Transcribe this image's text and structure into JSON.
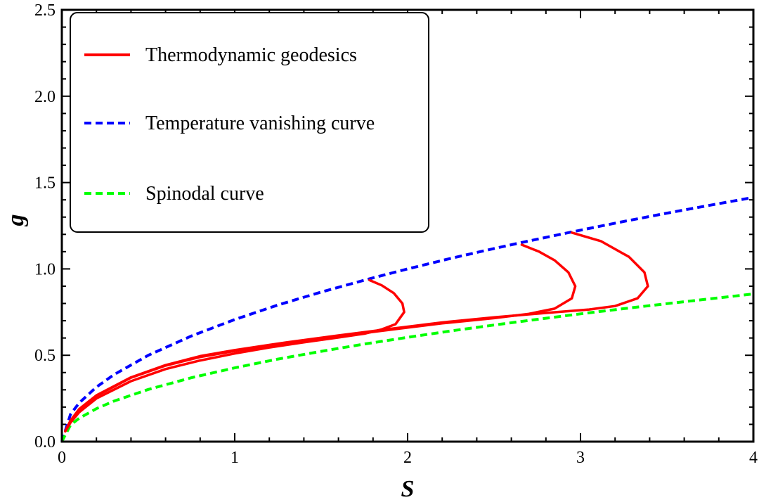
{
  "chart_data": {
    "type": "line",
    "xlabel": "S",
    "ylabel": "g",
    "xlim": [
      0,
      4
    ],
    "ylim": [
      0,
      2.5
    ],
    "xticks": [
      "0",
      "1",
      "2",
      "3",
      "4"
    ],
    "yticks": [
      "0.0",
      "0.5",
      "1.0",
      "1.5",
      "2.0",
      "2.5"
    ],
    "legend_position": "top-left",
    "legend": [
      {
        "label": "Thermodynamic geodesics",
        "color": "#ff0000",
        "style": "solid"
      },
      {
        "label": "Temperature vanishing curve",
        "color": "#0000ff",
        "style": "dashed"
      },
      {
        "label": "Spinodal curve",
        "color": "#00ff00",
        "style": "dashed"
      }
    ],
    "series": [
      {
        "name": "Temperature vanishing curve",
        "color": "#0000ff",
        "style": "dashed",
        "points": [
          [
            0,
            0
          ],
          [
            0.05,
            0.158
          ],
          [
            0.1,
            0.224
          ],
          [
            0.2,
            0.316
          ],
          [
            0.3,
            0.387
          ],
          [
            0.5,
            0.5
          ],
          [
            0.75,
            0.612
          ],
          [
            1,
            0.707
          ],
          [
            1.25,
            0.791
          ],
          [
            1.5,
            0.866
          ],
          [
            1.78,
            0.943
          ],
          [
            2,
            1.0
          ],
          [
            2.25,
            1.061
          ],
          [
            2.5,
            1.118
          ],
          [
            2.66,
            1.153
          ],
          [
            2.95,
            1.214
          ],
          [
            3.25,
            1.275
          ],
          [
            3.5,
            1.323
          ],
          [
            3.75,
            1.369
          ],
          [
            4,
            1.414
          ]
        ]
      },
      {
        "name": "Spinodal curve",
        "color": "#00ff00",
        "style": "dashed",
        "points": [
          [
            0,
            0
          ],
          [
            0.05,
            0.096
          ],
          [
            0.1,
            0.135
          ],
          [
            0.2,
            0.191
          ],
          [
            0.3,
            0.234
          ],
          [
            0.5,
            0.302
          ],
          [
            0.75,
            0.37
          ],
          [
            1,
            0.427
          ],
          [
            1.25,
            0.478
          ],
          [
            1.5,
            0.523
          ],
          [
            1.75,
            0.565
          ],
          [
            2,
            0.604
          ],
          [
            2.25,
            0.641
          ],
          [
            2.5,
            0.675
          ],
          [
            2.75,
            0.708
          ],
          [
            3,
            0.74
          ],
          [
            3.25,
            0.77
          ],
          [
            3.5,
            0.799
          ],
          [
            3.75,
            0.827
          ],
          [
            4,
            0.855
          ]
        ]
      },
      {
        "color": "#ff0000",
        "style": "solid",
        "points": [
          [
            0.02,
            0.06
          ],
          [
            0.05,
            0.11
          ],
          [
            0.1,
            0.17
          ],
          [
            0.2,
            0.25
          ],
          [
            0.4,
            0.35
          ],
          [
            0.6,
            0.42
          ],
          [
            0.8,
            0.47
          ],
          [
            1.0,
            0.51
          ],
          [
            1.2,
            0.545
          ],
          [
            1.4,
            0.575
          ],
          [
            1.6,
            0.603
          ],
          [
            1.75,
            0.625
          ],
          [
            1.85,
            0.65
          ],
          [
            1.93,
            0.68
          ],
          [
            1.98,
            0.75
          ],
          [
            1.97,
            0.8
          ],
          [
            1.92,
            0.86
          ],
          [
            1.85,
            0.905
          ],
          [
            1.78,
            0.935
          ]
        ]
      },
      {
        "color": "#ff0000",
        "style": "solid",
        "points": [
          [
            0.02,
            0.06
          ],
          [
            0.05,
            0.12
          ],
          [
            0.1,
            0.185
          ],
          [
            0.2,
            0.265
          ],
          [
            0.4,
            0.37
          ],
          [
            0.6,
            0.44
          ],
          [
            0.8,
            0.49
          ],
          [
            1.0,
            0.525
          ],
          [
            1.3,
            0.57
          ],
          [
            1.6,
            0.61
          ],
          [
            1.9,
            0.648
          ],
          [
            2.2,
            0.685
          ],
          [
            2.5,
            0.715
          ],
          [
            2.7,
            0.74
          ],
          [
            2.85,
            0.77
          ],
          [
            2.95,
            0.83
          ],
          [
            2.97,
            0.9
          ],
          [
            2.93,
            0.98
          ],
          [
            2.85,
            1.05
          ],
          [
            2.76,
            1.1
          ],
          [
            2.66,
            1.14
          ]
        ]
      },
      {
        "color": "#ff0000",
        "style": "solid",
        "points": [
          [
            0.02,
            0.06
          ],
          [
            0.05,
            0.122
          ],
          [
            0.1,
            0.188
          ],
          [
            0.2,
            0.268
          ],
          [
            0.4,
            0.372
          ],
          [
            0.6,
            0.443
          ],
          [
            0.8,
            0.495
          ],
          [
            1.0,
            0.53
          ],
          [
            1.3,
            0.575
          ],
          [
            1.6,
            0.615
          ],
          [
            1.9,
            0.653
          ],
          [
            2.2,
            0.69
          ],
          [
            2.5,
            0.72
          ],
          [
            2.8,
            0.745
          ],
          [
            3.05,
            0.765
          ],
          [
            3.2,
            0.785
          ],
          [
            3.33,
            0.83
          ],
          [
            3.39,
            0.9
          ],
          [
            3.37,
            0.98
          ],
          [
            3.28,
            1.07
          ],
          [
            3.12,
            1.16
          ],
          [
            2.95,
            1.21
          ]
        ]
      }
    ]
  }
}
